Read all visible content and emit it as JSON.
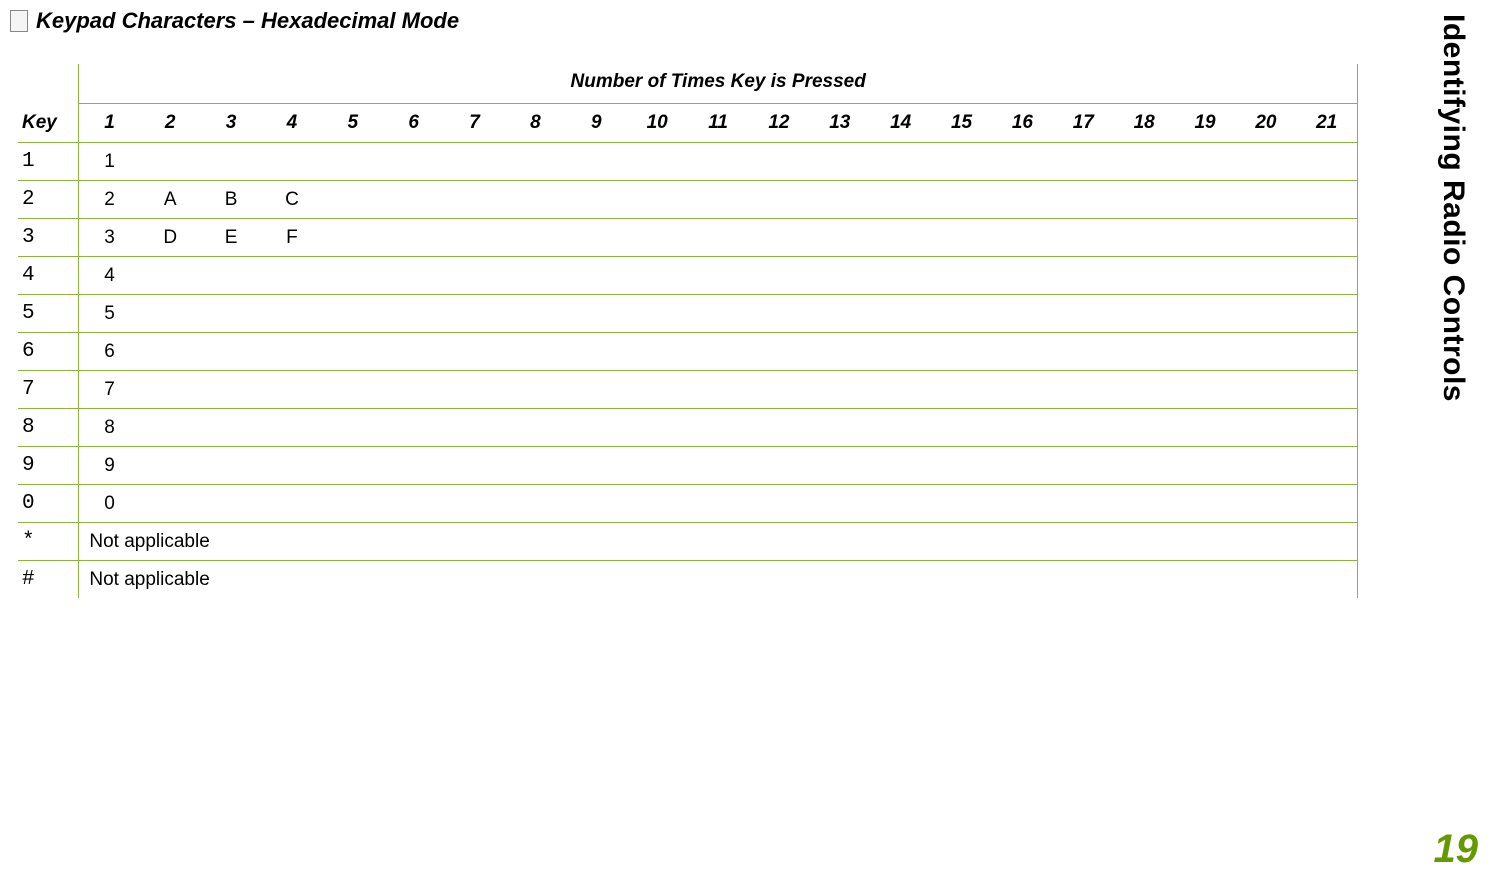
{
  "title": "Keypad Characters – Hexadecimal Mode",
  "side_label": "Identifying Radio Controls",
  "page_number": "19",
  "table": {
    "group_header": "Number of Times Key is Pressed",
    "key_header": "Key",
    "columns": [
      "1",
      "2",
      "3",
      "4",
      "5",
      "6",
      "7",
      "8",
      "9",
      "10",
      "11",
      "12",
      "13",
      "14",
      "15",
      "16",
      "17",
      "18",
      "19",
      "20",
      "21"
    ],
    "rows": [
      {
        "key": "1",
        "cells": [
          "1",
          "",
          "",
          "",
          "",
          "",
          "",
          "",
          "",
          "",
          "",
          "",
          "",
          "",
          "",
          "",
          "",
          "",
          "",
          "",
          ""
        ]
      },
      {
        "key": "2",
        "cells": [
          "2",
          "A",
          "B",
          "C",
          "",
          "",
          "",
          "",
          "",
          "",
          "",
          "",
          "",
          "",
          "",
          "",
          "",
          "",
          "",
          "",
          ""
        ]
      },
      {
        "key": "3",
        "cells": [
          "3",
          "D",
          "E",
          "F",
          "",
          "",
          "",
          "",
          "",
          "",
          "",
          "",
          "",
          "",
          "",
          "",
          "",
          "",
          "",
          "",
          ""
        ]
      },
      {
        "key": "4",
        "cells": [
          "4",
          "",
          "",
          "",
          "",
          "",
          "",
          "",
          "",
          "",
          "",
          "",
          "",
          "",
          "",
          "",
          "",
          "",
          "",
          "",
          ""
        ]
      },
      {
        "key": "5",
        "cells": [
          "5",
          "",
          "",
          "",
          "",
          "",
          "",
          "",
          "",
          "",
          "",
          "",
          "",
          "",
          "",
          "",
          "",
          "",
          "",
          "",
          ""
        ]
      },
      {
        "key": "6",
        "cells": [
          "6",
          "",
          "",
          "",
          "",
          "",
          "",
          "",
          "",
          "",
          "",
          "",
          "",
          "",
          "",
          "",
          "",
          "",
          "",
          "",
          ""
        ]
      },
      {
        "key": "7",
        "cells": [
          "7",
          "",
          "",
          "",
          "",
          "",
          "",
          "",
          "",
          "",
          "",
          "",
          "",
          "",
          "",
          "",
          "",
          "",
          "",
          "",
          ""
        ]
      },
      {
        "key": "8",
        "cells": [
          "8",
          "",
          "",
          "",
          "",
          "",
          "",
          "",
          "",
          "",
          "",
          "",
          "",
          "",
          "",
          "",
          "",
          "",
          "",
          "",
          ""
        ]
      },
      {
        "key": "9",
        "cells": [
          "9",
          "",
          "",
          "",
          "",
          "",
          "",
          "",
          "",
          "",
          "",
          "",
          "",
          "",
          "",
          "",
          "",
          "",
          "",
          "",
          ""
        ]
      },
      {
        "key": "0",
        "cells": [
          "0",
          "",
          "",
          "",
          "",
          "",
          "",
          "",
          "",
          "",
          "",
          "",
          "",
          "",
          "",
          "",
          "",
          "",
          "",
          "",
          ""
        ]
      },
      {
        "key": "*",
        "na": "Not applicable"
      },
      {
        "key": "#",
        "na": "Not applicable"
      }
    ]
  },
  "colors": {
    "rule": "#8db33f",
    "pagenum": "#639a00",
    "text": "#000000",
    "background": "#ffffff"
  }
}
